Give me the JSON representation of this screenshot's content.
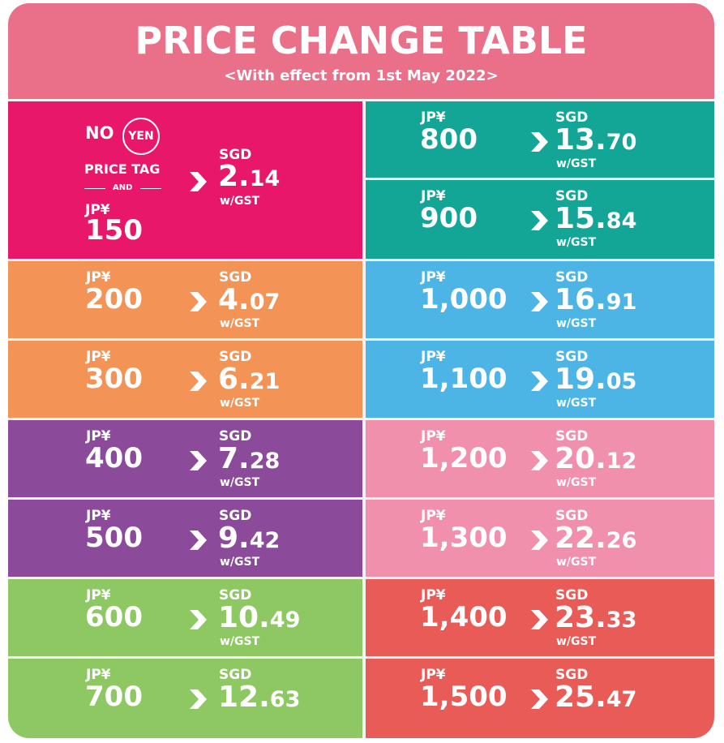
{
  "header": {
    "title": "PRICE CHANGE TABLE",
    "subtitle": "<With effect from 1st May 2022>"
  },
  "labels": {
    "jpy": "JP¥",
    "sgd": "SGD",
    "gst": "w/GST"
  },
  "special": {
    "no": "NO",
    "yen": "YEN",
    "price_tag": "PRICE TAG",
    "and": "AND"
  },
  "colors": {
    "header": "#ea6f89",
    "magenta": "#e8176a",
    "orange": "#f39356",
    "purple": "#8c4a9b",
    "green": "#8dc863",
    "teal": "#13a697",
    "blue": "#4cb5e6",
    "pink": "#f190ac",
    "red": "#e85b57"
  },
  "rows_left": [
    {
      "jpy": "150",
      "sgd_int": "2.",
      "sgd_dec": "14",
      "gst": true,
      "color": "#e8176a",
      "special": true
    },
    {
      "jpy": "200",
      "sgd_int": "4.",
      "sgd_dec": "07",
      "gst": true,
      "color": "#f39356"
    },
    {
      "jpy": "300",
      "sgd_int": "6.",
      "sgd_dec": "21",
      "gst": true,
      "color": "#f39356"
    },
    {
      "jpy": "400",
      "sgd_int": "7.",
      "sgd_dec": "28",
      "gst": true,
      "color": "#8c4a9b"
    },
    {
      "jpy": "500",
      "sgd_int": "9.",
      "sgd_dec": "42",
      "gst": true,
      "color": "#8c4a9b"
    },
    {
      "jpy": "600",
      "sgd_int": "10.",
      "sgd_dec": "49",
      "gst": true,
      "color": "#8dc863"
    },
    {
      "jpy": "700",
      "sgd_int": "12.",
      "sgd_dec": "63",
      "gst": false,
      "color": "#8dc863"
    }
  ],
  "rows_right": [
    {
      "jpy": "800",
      "sgd_int": "13.",
      "sgd_dec": "70",
      "gst": true,
      "color": "#13a697"
    },
    {
      "jpy": "900",
      "sgd_int": "15.",
      "sgd_dec": "84",
      "gst": true,
      "color": "#13a697"
    },
    {
      "jpy": "1,000",
      "sgd_int": "16.",
      "sgd_dec": "91",
      "gst": true,
      "color": "#4cb5e6"
    },
    {
      "jpy": "1,100",
      "sgd_int": "19.",
      "sgd_dec": "05",
      "gst": true,
      "color": "#4cb5e6"
    },
    {
      "jpy": "1,200",
      "sgd_int": "20.",
      "sgd_dec": "12",
      "gst": true,
      "color": "#f190ac"
    },
    {
      "jpy": "1,300",
      "sgd_int": "22.",
      "sgd_dec": "26",
      "gst": true,
      "color": "#f190ac"
    },
    {
      "jpy": "1,400",
      "sgd_int": "23.",
      "sgd_dec": "33",
      "gst": true,
      "color": "#e85b57"
    },
    {
      "jpy": "1,500",
      "sgd_int": "25.",
      "sgd_dec": "47",
      "gst": false,
      "color": "#e85b57"
    }
  ]
}
